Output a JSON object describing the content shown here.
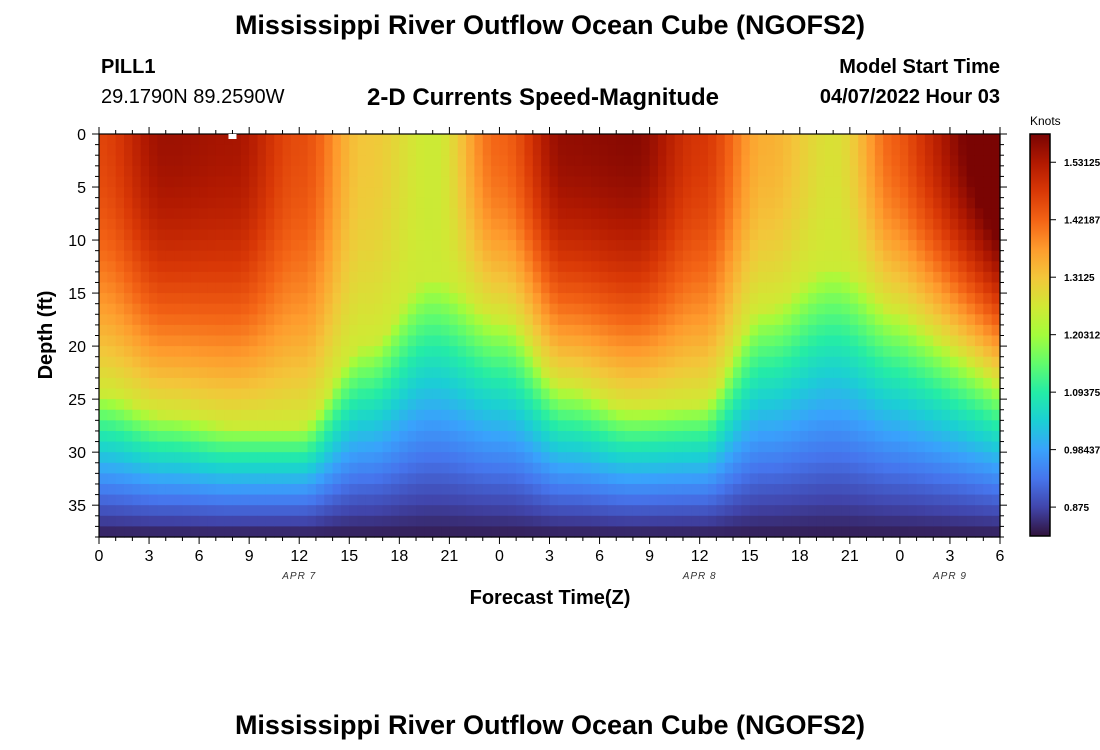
{
  "header": {
    "title": "Mississippi River Outflow Ocean Cube (NGOFS2)",
    "station_name": "PILL1",
    "coordinates": "29.1790N  89.2590W",
    "subtitle": "2-D Currents Speed-Magnitude",
    "model_start_label": "Model Start Time",
    "model_start_value": "04/07/2022 Hour 03"
  },
  "footer": {
    "title": "Mississippi River Outflow Ocean Cube (NGOFS2)"
  },
  "chart_data": {
    "type": "heatmap",
    "title": "2-D Currents Speed-Magnitude",
    "xlabel": "Forecast Time(Z)",
    "ylabel": "Depth (ft)",
    "x_range_hours": [
      0,
      54
    ],
    "x_tick_hours": [
      0,
      3,
      6,
      9,
      12,
      15,
      18,
      21,
      24,
      27,
      30,
      33,
      36,
      39,
      42,
      45,
      48,
      51,
      54
    ],
    "x_tick_labels": [
      "0",
      "3",
      "6",
      "9",
      "12",
      "15",
      "18",
      "21",
      "0",
      "3",
      "6",
      "9",
      "12",
      "15",
      "18",
      "21",
      "0",
      "3",
      "6"
    ],
    "date_labels": [
      {
        "text": "APR 7",
        "hour": 12
      },
      {
        "text": "APR 8",
        "hour": 36
      },
      {
        "text": "APR 9",
        "hour": 51
      }
    ],
    "ylim": [
      0,
      38
    ],
    "y_ticks": [
      0,
      5,
      10,
      15,
      20,
      25,
      30,
      35
    ],
    "y_tick_labels": [
      "0",
      "5",
      "10",
      "15",
      "20",
      "25",
      "30",
      "35"
    ],
    "colorbar": {
      "label": "Knots",
      "min": 0.82,
      "max": 1.585,
      "tick_values": [
        1.53125,
        1.421875,
        1.3125,
        1.203125,
        1.09375,
        0.984375,
        0.875
      ],
      "tick_labels": [
        "1.53125",
        "1.421875",
        "1.3125",
        "1.203125",
        "1.09375",
        "0.984375",
        "0.875"
      ],
      "colors": [
        "#30123b",
        "#4145ab",
        "#4675ed",
        "#39a2fc",
        "#1bcfd4",
        "#24eca6",
        "#61fc6c",
        "#a4fc3b",
        "#d1e834",
        "#f3c63a",
        "#fe9b2d",
        "#f36315",
        "#d93806",
        "#b11901",
        "#7a0403"
      ]
    },
    "model": {
      "description": "approximate speed field read from colors",
      "surface_max_speed": [
        1.46,
        1.55,
        1.54,
        1.45,
        1.31,
        1.25,
        1.42,
        1.56,
        1.57,
        1.48,
        1.34,
        1.27,
        1.43
      ],
      "surface_max_hours": [
        0,
        4,
        8,
        12,
        16,
        20,
        24,
        28,
        32,
        36,
        40,
        44,
        48
      ],
      "transition_depth_ft": [
        24.5,
        26.5,
        27.5,
        27.5,
        20.0,
        13.5,
        17.5,
        24.0,
        26.0,
        25.5,
        16.5,
        12.5,
        17.0
      ],
      "transition_hours": [
        0,
        4,
        8,
        12,
        16,
        20,
        24,
        28,
        32,
        36,
        40,
        44,
        48
      ],
      "bottom_speed": 0.83
    },
    "marker": {
      "hour": 8,
      "depth": 0.2
    }
  }
}
